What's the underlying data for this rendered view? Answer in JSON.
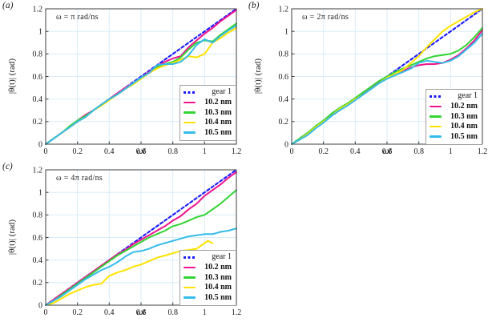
{
  "figure": {
    "background": "#ffffff",
    "text_color": "#1a1a1a",
    "grid_color": "#d8edf8",
    "spine_color": "#3c3c3c",
    "legend_border_color": "#a0a0a0"
  },
  "chart_data": [
    {
      "type": "line",
      "panel_label": "(a)",
      "annotation": "ω = π rad/ns",
      "xlabel": "ωt",
      "ylabel": "|θ(t)| (rad)",
      "xlim": [
        0,
        1.2
      ],
      "ylim": [
        0,
        1.2
      ],
      "xticks": [
        0,
        0.2,
        0.4,
        0.6,
        0.8,
        1,
        1.2
      ],
      "yticks": [
        0,
        0.2,
        0.4,
        0.6,
        0.8,
        1,
        1.2
      ],
      "grid": true,
      "legend_position": "lower right",
      "series": [
        {
          "name": "gear 1",
          "color": "#1a1aff",
          "style": "dashed",
          "x": [
            0,
            1.2
          ],
          "y": [
            0,
            1.2
          ]
        },
        {
          "name": "10.2 nm",
          "color": "#f0138d",
          "style": "solid",
          "x": [
            0,
            0.05,
            0.1,
            0.15,
            0.2,
            0.25,
            0.3,
            0.35,
            0.4,
            0.45,
            0.5,
            0.55,
            0.6,
            0.65,
            0.7,
            0.75,
            0.8,
            0.85,
            0.9,
            0.95,
            1,
            1.05,
            1.1,
            1.15,
            1.2
          ],
          "y": [
            0,
            0.05,
            0.1,
            0.15,
            0.21,
            0.26,
            0.3,
            0.35,
            0.4,
            0.45,
            0.5,
            0.54,
            0.59,
            0.64,
            0.69,
            0.73,
            0.76,
            0.78,
            0.86,
            0.92,
            0.98,
            1.03,
            1.09,
            1.14,
            1.19
          ]
        },
        {
          "name": "10.3 nm",
          "color": "#33d433",
          "style": "solid",
          "x": [
            0,
            0.05,
            0.1,
            0.15,
            0.2,
            0.25,
            0.3,
            0.35,
            0.4,
            0.45,
            0.5,
            0.55,
            0.6,
            0.65,
            0.7,
            0.75,
            0.8,
            0.85,
            0.9,
            0.95,
            1,
            1.05,
            1.1,
            1.15,
            1.2
          ],
          "y": [
            0,
            0.05,
            0.1,
            0.16,
            0.21,
            0.25,
            0.3,
            0.35,
            0.4,
            0.44,
            0.49,
            0.54,
            0.59,
            0.63,
            0.68,
            0.71,
            0.73,
            0.77,
            0.84,
            0.9,
            0.92,
            0.91,
            0.97,
            1.02,
            1.07
          ]
        },
        {
          "name": "10.4 nm",
          "color": "#ffe300",
          "style": "solid",
          "x": [
            0,
            0.05,
            0.1,
            0.15,
            0.2,
            0.25,
            0.3,
            0.35,
            0.4,
            0.45,
            0.5,
            0.55,
            0.6,
            0.65,
            0.7,
            0.75,
            0.8,
            0.85,
            0.9,
            0.95,
            1,
            1.05,
            1.1,
            1.15,
            1.2
          ],
          "y": [
            0,
            0.05,
            0.1,
            0.15,
            0.2,
            0.24,
            0.3,
            0.34,
            0.39,
            0.44,
            0.49,
            0.53,
            0.58,
            0.63,
            0.67,
            0.7,
            0.72,
            0.75,
            0.78,
            0.77,
            0.8,
            0.9,
            0.94,
            0.99,
            1.03
          ]
        },
        {
          "name": "10.5 nm",
          "color": "#35bce8",
          "style": "solid",
          "x": [
            0,
            0.05,
            0.1,
            0.15,
            0.2,
            0.25,
            0.3,
            0.35,
            0.4,
            0.45,
            0.5,
            0.55,
            0.6,
            0.65,
            0.7,
            0.75,
            0.8,
            0.85,
            0.9,
            0.95,
            1,
            1.05,
            1.1,
            1.15,
            1.2
          ],
          "y": [
            0,
            0.05,
            0.1,
            0.15,
            0.2,
            0.24,
            0.3,
            0.35,
            0.4,
            0.44,
            0.49,
            0.54,
            0.59,
            0.63,
            0.7,
            0.71,
            0.71,
            0.73,
            0.79,
            0.88,
            0.93,
            0.9,
            0.96,
            1.01,
            1.05
          ]
        }
      ]
    },
    {
      "type": "line",
      "panel_label": "(b)",
      "annotation": "ω = 2π rad/ns",
      "xlabel": "ωt",
      "ylabel": "|θ(t)| (rad)",
      "xlim": [
        0,
        1.2
      ],
      "ylim": [
        0,
        1.2
      ],
      "xticks": [
        0,
        0.2,
        0.4,
        0.6,
        0.8,
        1,
        1.2
      ],
      "yticks": [
        0,
        0.2,
        0.4,
        0.6,
        0.8,
        1,
        1.2
      ],
      "grid": true,
      "legend_position": "lower right",
      "series": [
        {
          "name": "gear 1",
          "color": "#1a1aff",
          "style": "dashed",
          "x": [
            0,
            1.2
          ],
          "y": [
            0,
            1.2
          ]
        },
        {
          "name": "10.2 nm",
          "color": "#f0138d",
          "style": "solid",
          "x": [
            0,
            0.05,
            0.1,
            0.15,
            0.2,
            0.25,
            0.3,
            0.35,
            0.4,
            0.45,
            0.5,
            0.55,
            0.6,
            0.65,
            0.7,
            0.75,
            0.8,
            0.85,
            0.9,
            0.95,
            1,
            1.05,
            1.1,
            1.15,
            1.2
          ],
          "y": [
            0,
            0.04,
            0.09,
            0.15,
            0.2,
            0.26,
            0.31,
            0.35,
            0.4,
            0.45,
            0.5,
            0.55,
            0.59,
            0.62,
            0.65,
            0.68,
            0.7,
            0.71,
            0.71,
            0.72,
            0.75,
            0.79,
            0.85,
            0.92,
            1.01
          ]
        },
        {
          "name": "10.3 nm",
          "color": "#33d433",
          "style": "solid",
          "x": [
            0,
            0.05,
            0.1,
            0.15,
            0.2,
            0.25,
            0.3,
            0.35,
            0.4,
            0.45,
            0.5,
            0.55,
            0.6,
            0.65,
            0.7,
            0.75,
            0.8,
            0.85,
            0.9,
            0.95,
            1,
            1.05,
            1.1,
            1.15,
            1.2
          ],
          "y": [
            0,
            0.05,
            0.1,
            0.16,
            0.21,
            0.27,
            0.32,
            0.36,
            0.41,
            0.46,
            0.51,
            0.56,
            0.6,
            0.64,
            0.67,
            0.7,
            0.73,
            0.76,
            0.78,
            0.79,
            0.8,
            0.83,
            0.88,
            0.95,
            1.03
          ]
        },
        {
          "name": "10.4 nm",
          "color": "#ffe300",
          "style": "solid",
          "x": [
            0,
            0.05,
            0.1,
            0.15,
            0.2,
            0.25,
            0.3,
            0.35,
            0.4,
            0.45,
            0.5,
            0.55,
            0.6,
            0.65,
            0.7,
            0.75,
            0.8,
            0.85,
            0.9,
            0.95,
            1,
            1.05,
            1.1,
            1.15,
            1.2
          ],
          "y": [
            0,
            0.04,
            0.09,
            0.15,
            0.2,
            0.25,
            0.31,
            0.35,
            0.4,
            0.44,
            0.49,
            0.54,
            0.59,
            0.62,
            0.66,
            0.72,
            0.78,
            0.86,
            0.93,
            1.0,
            1.05,
            1.09,
            1.13,
            1.17,
            1.2
          ]
        },
        {
          "name": "10.5 nm",
          "color": "#35bce8",
          "style": "solid",
          "x": [
            0,
            0.05,
            0.1,
            0.15,
            0.2,
            0.25,
            0.3,
            0.35,
            0.4,
            0.45,
            0.5,
            0.55,
            0.6,
            0.65,
            0.7,
            0.75,
            0.8,
            0.85,
            0.9,
            0.95,
            1,
            1.05,
            1.1,
            1.15,
            1.2
          ],
          "y": [
            0,
            0.04,
            0.08,
            0.14,
            0.19,
            0.25,
            0.3,
            0.34,
            0.39,
            0.44,
            0.49,
            0.54,
            0.58,
            0.61,
            0.64,
            0.67,
            0.72,
            0.74,
            0.73,
            0.72,
            0.74,
            0.78,
            0.84,
            0.9,
            0.98
          ]
        }
      ]
    },
    {
      "type": "line",
      "panel_label": "(c)",
      "annotation": "ω = 4π rad/ns",
      "xlabel": "ωt",
      "ylabel": "|θ(t)| (rad)",
      "xlim": [
        0,
        1.2
      ],
      "ylim": [
        0,
        1.2
      ],
      "xticks": [
        0,
        0.2,
        0.4,
        0.6,
        0.8,
        1,
        1.2
      ],
      "yticks": [
        0,
        0.2,
        0.4,
        0.6,
        0.8,
        1,
        1.2
      ],
      "grid": true,
      "legend_position": "lower right",
      "series": [
        {
          "name": "gear 1",
          "color": "#1a1aff",
          "style": "dashed",
          "x": [
            0,
            1.2
          ],
          "y": [
            0,
            1.2
          ]
        },
        {
          "name": "10.2 nm",
          "color": "#f0138d",
          "style": "solid",
          "x": [
            0,
            0.05,
            0.1,
            0.15,
            0.2,
            0.25,
            0.3,
            0.35,
            0.4,
            0.45,
            0.5,
            0.55,
            0.6,
            0.65,
            0.7,
            0.75,
            0.8,
            0.85,
            0.9,
            0.95,
            1,
            1.05,
            1.1,
            1.15,
            1.2
          ],
          "y": [
            0,
            0.05,
            0.1,
            0.15,
            0.2,
            0.25,
            0.3,
            0.35,
            0.4,
            0.45,
            0.49,
            0.54,
            0.58,
            0.62,
            0.66,
            0.7,
            0.75,
            0.79,
            0.85,
            0.9,
            0.97,
            1.02,
            1.07,
            1.13,
            1.18
          ]
        },
        {
          "name": "10.3 nm",
          "color": "#33d433",
          "style": "solid",
          "x": [
            0,
            0.05,
            0.1,
            0.15,
            0.2,
            0.25,
            0.3,
            0.35,
            0.4,
            0.45,
            0.5,
            0.55,
            0.6,
            0.65,
            0.7,
            0.75,
            0.8,
            0.85,
            0.9,
            0.95,
            1,
            1.05,
            1.1,
            1.15,
            1.2
          ],
          "y": [
            0,
            0.04,
            0.09,
            0.14,
            0.19,
            0.24,
            0.29,
            0.34,
            0.39,
            0.44,
            0.48,
            0.52,
            0.56,
            0.6,
            0.63,
            0.66,
            0.7,
            0.72,
            0.75,
            0.78,
            0.8,
            0.85,
            0.9,
            0.96,
            1.02
          ]
        },
        {
          "name": "10.4 nm",
          "color": "#ffe300",
          "style": "solid",
          "x": [
            0,
            0.05,
            0.1,
            0.15,
            0.2,
            0.25,
            0.3,
            0.35,
            0.4,
            0.45,
            0.5,
            0.55,
            0.6,
            0.65,
            0.7,
            0.75,
            0.8,
            0.85,
            0.9,
            0.95,
            1,
            1.02,
            1.05
          ],
          "y": [
            0,
            0.02,
            0.06,
            0.1,
            0.13,
            0.16,
            0.18,
            0.19,
            0.26,
            0.29,
            0.31,
            0.34,
            0.36,
            0.39,
            0.42,
            0.44,
            0.46,
            0.48,
            0.49,
            0.5,
            0.55,
            0.57,
            0.55
          ]
        },
        {
          "name": "10.5 nm",
          "color": "#35bce8",
          "style": "solid",
          "x": [
            0,
            0.05,
            0.1,
            0.15,
            0.2,
            0.25,
            0.3,
            0.35,
            0.4,
            0.45,
            0.5,
            0.55,
            0.6,
            0.65,
            0.7,
            0.75,
            0.8,
            0.85,
            0.9,
            0.95,
            1,
            1.05,
            1.1,
            1.15,
            1.2
          ],
          "y": [
            0,
            0.04,
            0.08,
            0.13,
            0.18,
            0.23,
            0.27,
            0.31,
            0.34,
            0.38,
            0.43,
            0.47,
            0.48,
            0.5,
            0.53,
            0.55,
            0.57,
            0.59,
            0.61,
            0.62,
            0.63,
            0.63,
            0.65,
            0.66,
            0.68
          ]
        }
      ]
    }
  ]
}
